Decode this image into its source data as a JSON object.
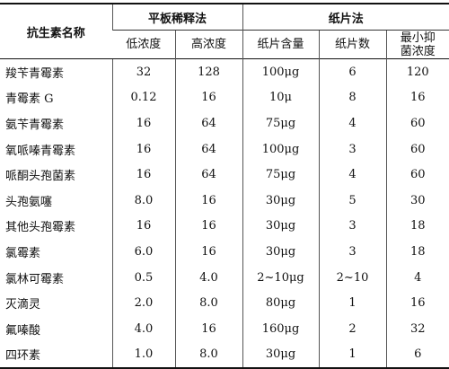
{
  "table": {
    "header": {
      "name": "抗生素名称",
      "groups": [
        "平板稀释法",
        "纸片法"
      ],
      "columns": [
        "低浓度",
        "高浓度",
        "纸片含量",
        "纸片数",
        "最小抑菌浓度"
      ]
    },
    "rows": [
      [
        "羧苄青霉素",
        "32",
        "128",
        "100μg",
        "6",
        "120"
      ],
      [
        "青霉素 G",
        "0.12",
        "16",
        "10μ",
        "8",
        "16"
      ],
      [
        "氨苄青霉素",
        "16",
        "64",
        "75μg",
        "4",
        "60"
      ],
      [
        "氧哌嗪青霉素",
        "16",
        "64",
        "100μg",
        "3",
        "60"
      ],
      [
        "哌酮头孢菌素",
        "16",
        "64",
        "75μg",
        "4",
        "60"
      ],
      [
        "头孢氨噻",
        "8.0",
        "16",
        "30μg",
        "5",
        "30"
      ],
      [
        "其他头孢霉素",
        "16",
        "16",
        "30μg",
        "3",
        "18"
      ],
      [
        "氯霉素",
        "6.0",
        "16",
        "30μg",
        "3",
        "18"
      ],
      [
        "氯林可霉素",
        "0.5",
        "4.0",
        "2~10μg",
        "2~10",
        "4"
      ],
      [
        "灭滴灵",
        "2.0",
        "8.0",
        "80μg",
        "1",
        "16"
      ],
      [
        "氟嗪酸",
        "4.0",
        "16",
        "160μg",
        "2",
        "32"
      ],
      [
        "四环素",
        "1.0",
        "8.0",
        "30μg",
        "1",
        "6"
      ]
    ]
  }
}
